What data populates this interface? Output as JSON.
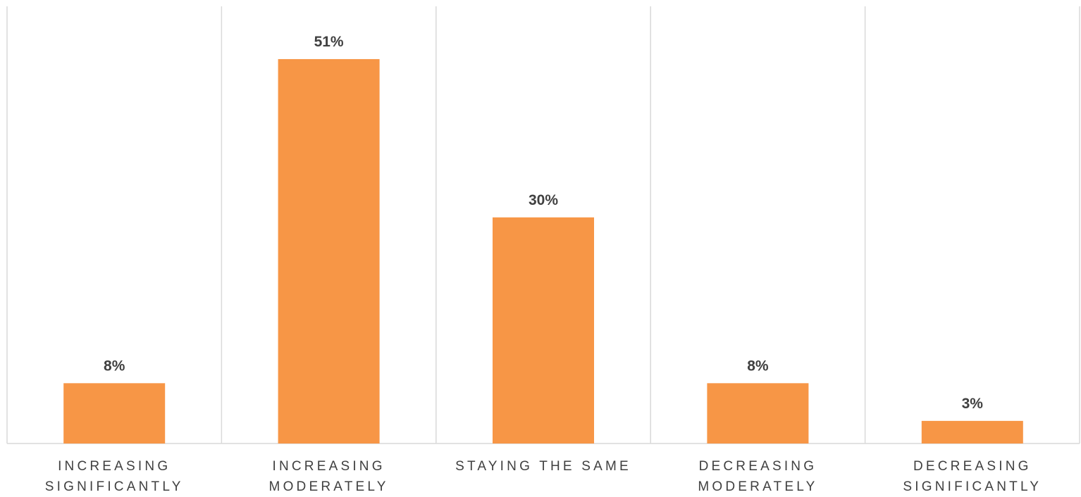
{
  "chart_data": {
    "type": "bar",
    "categories": [
      "INCREASING\nSIGNIFICANTLY",
      "INCREASING\nMODERATELY",
      "STAYING THE SAME",
      "DECREASING\nMODERATELY",
      "DECREASING\nSIGNIFICANTLY"
    ],
    "values": [
      8,
      51,
      30,
      8,
      3
    ],
    "data_labels": [
      "8%",
      "51%",
      "30%",
      "8%",
      "3%"
    ],
    "title": "",
    "xlabel": "",
    "ylabel": "",
    "ylim": [
      0,
      58
    ],
    "grid": "vertical category separators",
    "legend": "none",
    "bar_color": "#f79646",
    "label_color": "#404040",
    "grid_color": "#d9d9d9"
  }
}
